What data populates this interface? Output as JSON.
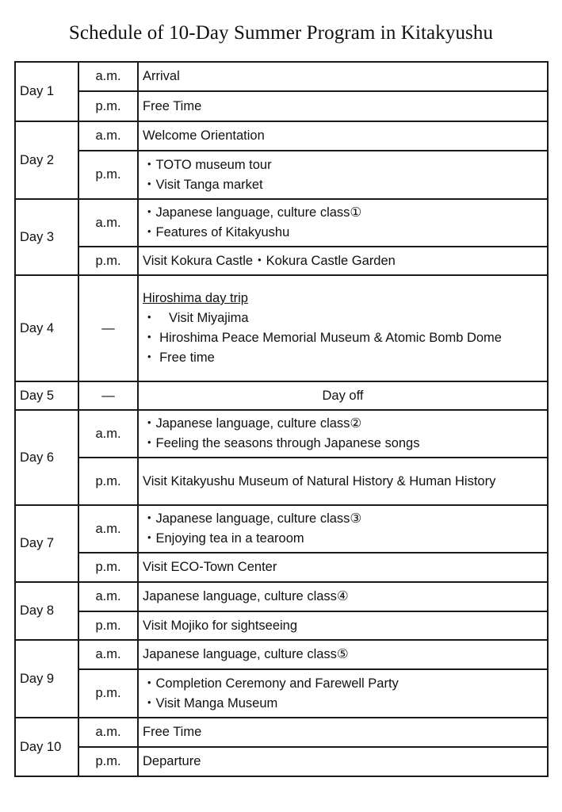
{
  "title": "Schedule of 10-Day Summer Program in Kitakyushu",
  "days": [
    {
      "day": "Day 1",
      "sessions": [
        {
          "period": "a.m.",
          "lines": [
            "Arrival"
          ]
        },
        {
          "period": "p.m.",
          "lines": [
            "Free Time"
          ]
        }
      ]
    },
    {
      "day": "Day 2",
      "sessions": [
        {
          "period": "a.m.",
          "lines": [
            "Welcome Orientation"
          ]
        },
        {
          "period": "p.m.",
          "lines": [
            "・TOTO museum tour",
            "・Visit Tanga market"
          ]
        }
      ]
    },
    {
      "day": "Day 3",
      "sessions": [
        {
          "period": "a.m.",
          "lines": [
            "・Japanese language, culture class①",
            "・Features of Kitakyushu"
          ]
        },
        {
          "period": "p.m.",
          "lines": [
            "Visit Kokura Castle・Kokura Castle Garden"
          ]
        }
      ]
    },
    {
      "day": "Day 4",
      "sessions": [
        {
          "period": "—",
          "heading": "Hiroshima day trip",
          "lines": [
            "・　Visit Miyajima",
            "・ Hiroshima Peace Memorial Museum & Atomic Bomb Dome",
            "・ Free time"
          ]
        }
      ]
    },
    {
      "day": "Day 5",
      "sessions": [
        {
          "period": "—",
          "lines": [
            "Day off"
          ],
          "centered": true
        }
      ]
    },
    {
      "day": "Day 6",
      "sessions": [
        {
          "period": "a.m.",
          "lines": [
            "・Japanese language, culture class②",
            "・Feeling the seasons through Japanese songs"
          ]
        },
        {
          "period": "p.m.",
          "lines": [
            "Visit Kitakyushu Museum of Natural History & Human History"
          ]
        }
      ]
    },
    {
      "day": "Day 7",
      "sessions": [
        {
          "period": "a.m.",
          "lines": [
            "・Japanese language, culture class③",
            "・Enjoying tea in a tearoom"
          ]
        },
        {
          "period": "p.m.",
          "lines": [
            "Visit ECO-Town Center"
          ]
        }
      ]
    },
    {
      "day": "Day 8",
      "sessions": [
        {
          "period": "a.m.",
          "lines": [
            "Japanese language, culture class④"
          ]
        },
        {
          "period": "p.m.",
          "lines": [
            "Visit Mojiko for sightseeing"
          ]
        }
      ]
    },
    {
      "day": "Day 9",
      "sessions": [
        {
          "period": "a.m.",
          "lines": [
            "Japanese language, culture class⑤"
          ]
        },
        {
          "period": "p.m.",
          "lines": [
            "・Completion Ceremony and Farewell Party",
            "・Visit Manga Museum"
          ]
        }
      ]
    },
    {
      "day": "Day 10",
      "sessions": [
        {
          "period": "a.m.",
          "lines": [
            "Free Time"
          ]
        },
        {
          "period": "p.m.",
          "lines": [
            "Departure"
          ]
        }
      ]
    }
  ]
}
